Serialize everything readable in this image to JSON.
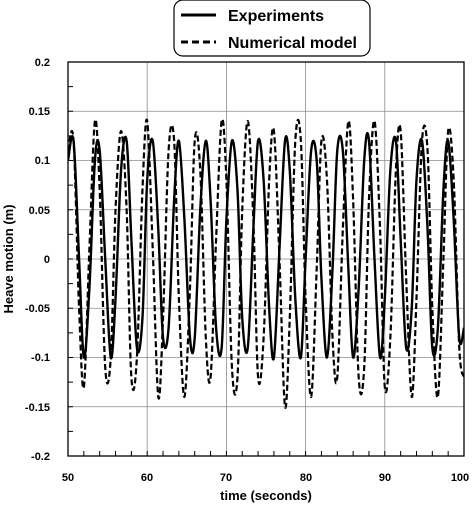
{
  "chart_data": {
    "type": "line",
    "title": "",
    "xlabel": "time (seconds)",
    "ylabel": "Heave motion (m)",
    "xlim": [
      50,
      100
    ],
    "ylim": [
      -0.2,
      0.2
    ],
    "x_ticks": [
      "50",
      "60",
      "70",
      "80",
      "90",
      "100"
    ],
    "y_ticks": [
      "0.2",
      "0.15",
      "0.1",
      "0.05",
      "0",
      "-0.05",
      "-0.1",
      "-0.15",
      "-0.2"
    ],
    "grid": true,
    "legend_position": "top-center",
    "series": [
      {
        "name": "Experiments",
        "style": "solid",
        "color": "#000000",
        "period_s": 2.65,
        "x": [
          50.0,
          50.7,
          51.4,
          52.0,
          52.7,
          53.4,
          54.0,
          54.7,
          55.4,
          56.0,
          56.7,
          57.4,
          58.0,
          58.7,
          59.4,
          60.0,
          60.7,
          61.4,
          62.0,
          62.7,
          63.4,
          64.0,
          64.7,
          65.4,
          66.0,
          66.7,
          67.4,
          68.0,
          68.7,
          69.4,
          70.0,
          70.7,
          71.4,
          72.0,
          72.7,
          73.4,
          74.0,
          74.7,
          75.4,
          76.0,
          76.7,
          77.4,
          78.0,
          78.7,
          79.4,
          80.0,
          80.7,
          81.4,
          82.0,
          82.7,
          83.4,
          84.0,
          84.7,
          85.4,
          86.0,
          86.7,
          87.4,
          88.0,
          88.7,
          89.4,
          90.0,
          90.7,
          91.4,
          92.0,
          92.7,
          93.4,
          94.0,
          94.7,
          95.4,
          96.0,
          96.7,
          97.4,
          98.0,
          98.7,
          99.4,
          100.0
        ],
        "y": [
          0.1,
          0.12,
          0.0,
          -0.1,
          -0.03,
          0.1,
          0.11,
          0.0,
          -0.1,
          -0.04,
          0.09,
          0.12,
          0.02,
          -0.09,
          -0.06,
          0.08,
          0.12,
          0.03,
          -0.08,
          -0.07,
          0.06,
          0.12,
          0.04,
          -0.08,
          -0.08,
          0.05,
          0.12,
          0.06,
          -0.07,
          -0.09,
          0.04,
          0.12,
          0.07,
          -0.06,
          -0.09,
          0.03,
          0.12,
          0.08,
          -0.05,
          -0.1,
          0.01,
          0.12,
          0.09,
          -0.04,
          -0.1,
          0.0,
          0.11,
          0.1,
          -0.02,
          -0.1,
          -0.01,
          0.11,
          0.11,
          -0.01,
          -0.1,
          -0.03,
          0.1,
          0.12,
          0.0,
          -0.1,
          -0.04,
          0.09,
          0.12,
          0.02,
          -0.09,
          -0.05,
          0.08,
          0.12,
          0.03,
          -0.09,
          -0.07,
          0.07,
          0.12,
          0.04,
          -0.08,
          -0.07
        ]
      },
      {
        "name": "Numerical model",
        "style": "dashed",
        "color": "#000000",
        "x": [
          50.0,
          50.7,
          51.4,
          52.0,
          52.7,
          53.4,
          54.0,
          54.7,
          55.4,
          56.0,
          56.7,
          57.4,
          58.0,
          58.7,
          59.4,
          60.0,
          60.7,
          61.4,
          62.0,
          62.7,
          63.4,
          64.0,
          64.7,
          65.4,
          66.0,
          66.7,
          67.4,
          68.0,
          68.7,
          69.4,
          70.0,
          70.7,
          71.4,
          72.0,
          72.7,
          73.4,
          74.0,
          74.7,
          75.4,
          76.0,
          76.7,
          77.4,
          78.0,
          78.7,
          79.4,
          80.0,
          80.7,
          81.4,
          82.0,
          82.7,
          83.4,
          84.0,
          84.7,
          85.4,
          86.0,
          86.7,
          87.4,
          88.0,
          88.7,
          89.4,
          90.0,
          90.7,
          91.4,
          92.0,
          92.7,
          93.4,
          94.0,
          94.7,
          95.4,
          96.0,
          96.7,
          97.4,
          98.0,
          98.7,
          99.4,
          100.0
        ],
        "y": [
          0.11,
          0.12,
          -0.05,
          -0.13,
          0.01,
          0.14,
          0.07,
          -0.11,
          -0.1,
          0.05,
          0.13,
          0.05,
          -0.12,
          -0.1,
          0.07,
          0.14,
          0.01,
          -0.14,
          -0.06,
          0.11,
          0.12,
          -0.04,
          -0.14,
          -0.03,
          0.12,
          0.09,
          -0.08,
          -0.12,
          0.02,
          0.14,
          0.08,
          -0.11,
          -0.12,
          0.05,
          0.14,
          0.04,
          -0.12,
          -0.08,
          0.08,
          0.13,
          0.0,
          -0.15,
          -0.06,
          0.12,
          0.12,
          -0.04,
          -0.14,
          -0.01,
          0.12,
          0.08,
          -0.08,
          -0.12,
          0.03,
          0.14,
          0.06,
          -0.12,
          -0.11,
          0.06,
          0.14,
          0.03,
          -0.13,
          -0.08,
          0.09,
          0.13,
          -0.02,
          -0.14,
          -0.04,
          0.12,
          0.11,
          -0.05,
          -0.14,
          0.0,
          0.13,
          0.08,
          -0.09,
          -0.12
        ]
      }
    ]
  }
}
